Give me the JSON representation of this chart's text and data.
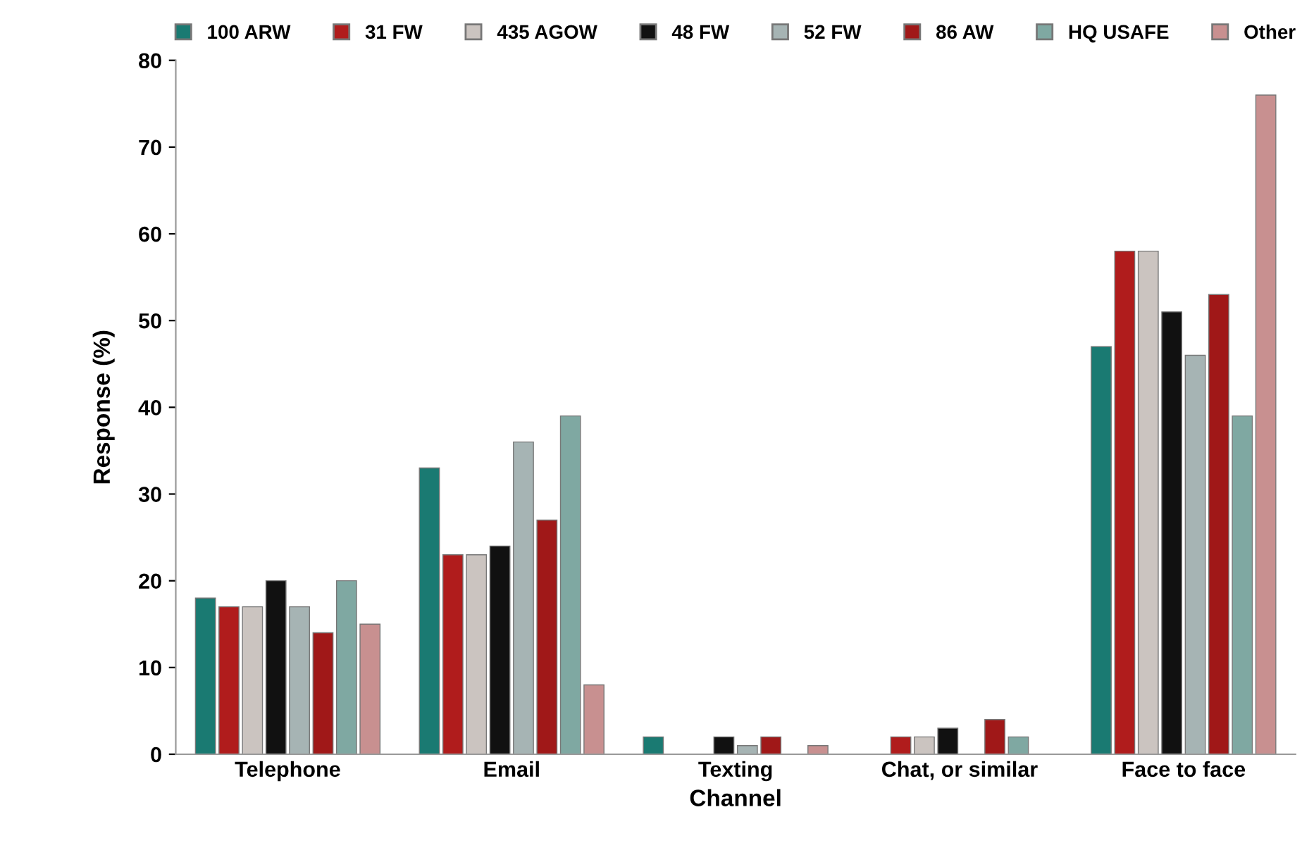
{
  "chart_data": {
    "type": "bar",
    "xlabel": "Channel",
    "ylabel": "Response (%)",
    "categories": [
      "Telephone",
      "Email",
      "Texting",
      "Chat, or similar",
      "Face to face"
    ],
    "series": [
      {
        "name": "100 ARW",
        "color": "#1a7a72",
        "values": [
          18,
          33,
          2,
          0,
          47
        ]
      },
      {
        "name": "31 FW",
        "color": "#b01c1c",
        "values": [
          17,
          23,
          0,
          2,
          58
        ]
      },
      {
        "name": "435 AGOW",
        "color": "#cbc4c0",
        "values": [
          17,
          23,
          0,
          2,
          58
        ]
      },
      {
        "name": "48 FW",
        "color": "#111111",
        "values": [
          20,
          24,
          2,
          3,
          51
        ]
      },
      {
        "name": "52 FW",
        "color": "#a6b4b4",
        "values": [
          17,
          36,
          1,
          0,
          46
        ]
      },
      {
        "name": "86 AW",
        "color": "#a01818",
        "values": [
          14,
          27,
          2,
          4,
          53
        ]
      },
      {
        "name": "HQ USAFE",
        "color": "#7fa8a2",
        "values": [
          20,
          39,
          0,
          2,
          39
        ]
      },
      {
        "name": "Other",
        "color": "#c89090",
        "values": [
          15,
          8,
          1,
          0,
          76
        ]
      }
    ],
    "ylim": [
      0,
      80
    ],
    "yticks": [
      0,
      10,
      20,
      30,
      40,
      50,
      60,
      70,
      80
    ],
    "grid": false,
    "legend": "top"
  }
}
